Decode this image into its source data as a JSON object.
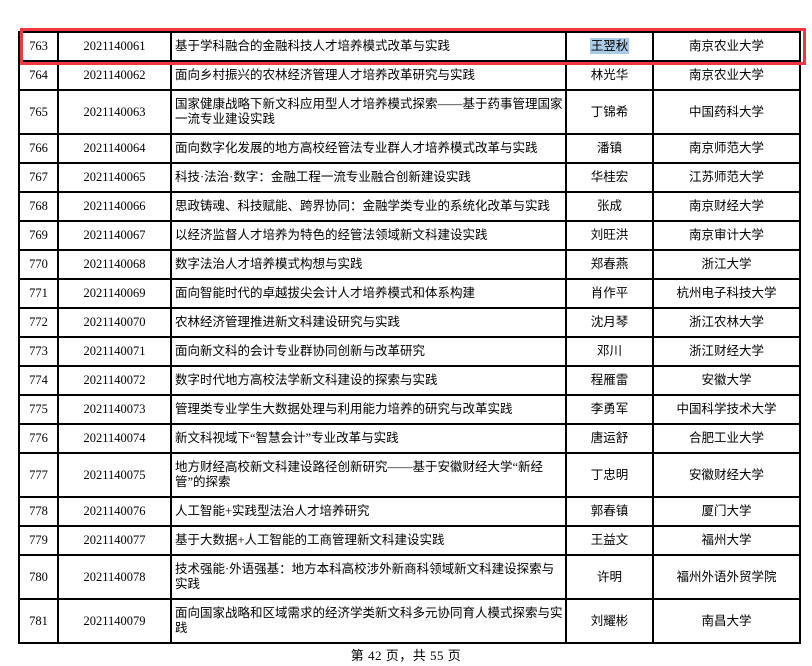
{
  "page": {
    "footer": "第 42 页，共 55 页"
  },
  "colors": {
    "highlight_box": "#f43640",
    "text_selection": "#a9cbe8",
    "table_border": "#000000"
  },
  "highlight": {
    "row_no": "763",
    "selected_text": "王翌秋"
  },
  "table": {
    "rows": [
      {
        "no": "763",
        "id": "2021140061",
        "title": "基于学科融合的金融科技人才培养模式改革与实践",
        "name": "王翌秋",
        "university": "南京农业大学",
        "name_selected": true
      },
      {
        "no": "764",
        "id": "2021140062",
        "title": "面向乡村振兴的农林经济管理人才培养改革研究与实践",
        "name": "林光华",
        "university": "南京农业大学"
      },
      {
        "no": "765",
        "id": "2021140063",
        "title": "国家健康战略下新文科应用型人才培养模式探索——基于药事管理国家一流专业建设实践",
        "name": "丁锦希",
        "university": "中国药科大学"
      },
      {
        "no": "766",
        "id": "2021140064",
        "title": "面向数字化发展的地方高校经管法专业群人才培养模式改革与实践",
        "name": "潘镇",
        "university": "南京师范大学"
      },
      {
        "no": "767",
        "id": "2021140065",
        "title": "科技·法治·数字：金融工程一流专业融合创新建设实践",
        "name": "华桂宏",
        "university": "江苏师范大学"
      },
      {
        "no": "768",
        "id": "2021140066",
        "title": "思政铸魂、科技赋能、跨界协同：金融学类专业的系统化改革与实践",
        "name": "张成",
        "university": "南京财经大学"
      },
      {
        "no": "769",
        "id": "2021140067",
        "title": "以经济监督人才培养为特色的经管法领域新文科建设实践",
        "name": "刘旺洪",
        "university": "南京审计大学"
      },
      {
        "no": "770",
        "id": "2021140068",
        "title": "数字法治人才培养模式构想与实践",
        "name": "郑春燕",
        "university": "浙江大学"
      },
      {
        "no": "771",
        "id": "2021140069",
        "title": "面向智能时代的卓越拔尖会计人才培养模式和体系构建",
        "name": "肖作平",
        "university": "杭州电子科技大学"
      },
      {
        "no": "772",
        "id": "2021140070",
        "title": "农林经济管理推进新文科建设研究与实践",
        "name": "沈月琴",
        "university": "浙江农林大学"
      },
      {
        "no": "773",
        "id": "2021140071",
        "title": "面向新文科的会计专业群协同创新与改革研究",
        "name": "邓川",
        "university": "浙江财经大学"
      },
      {
        "no": "774",
        "id": "2021140072",
        "title": "数字时代地方高校法学新文科建设的探索与实践",
        "name": "程雁雷",
        "university": "安徽大学"
      },
      {
        "no": "775",
        "id": "2021140073",
        "title": "管理类专业学生大数据处理与利用能力培养的研究与改革实践",
        "name": "李勇军",
        "university": "中国科学技术大学"
      },
      {
        "no": "776",
        "id": "2021140074",
        "title": "新文科视域下“智慧会计”专业改革与实践",
        "name": "唐运舒",
        "university": "合肥工业大学"
      },
      {
        "no": "777",
        "id": "2021140075",
        "title": "地方财经高校新文科建设路径创新研究——基于安徽财经大学“新经管”的探索",
        "name": "丁忠明",
        "university": "安徽财经大学"
      },
      {
        "no": "778",
        "id": "2021140076",
        "title": "人工智能+实践型法治人才培养研究",
        "name": "郭春镇",
        "university": "厦门大学"
      },
      {
        "no": "779",
        "id": "2021140077",
        "title": "基于大数据+人工智能的工商管理新文科建设实践",
        "name": "王益文",
        "university": "福州大学"
      },
      {
        "no": "780",
        "id": "2021140078",
        "title": "技术强能·外语强基：地方本科高校涉外新商科领域新文科建设探索与实践",
        "name": "许明",
        "university": "福州外语外贸学院"
      },
      {
        "no": "781",
        "id": "2021140079",
        "title": "面向国家战略和区域需求的经济学类新文科多元协同育人模式探索与实践",
        "name": "刘耀彬",
        "university": "南昌大学"
      }
    ]
  }
}
